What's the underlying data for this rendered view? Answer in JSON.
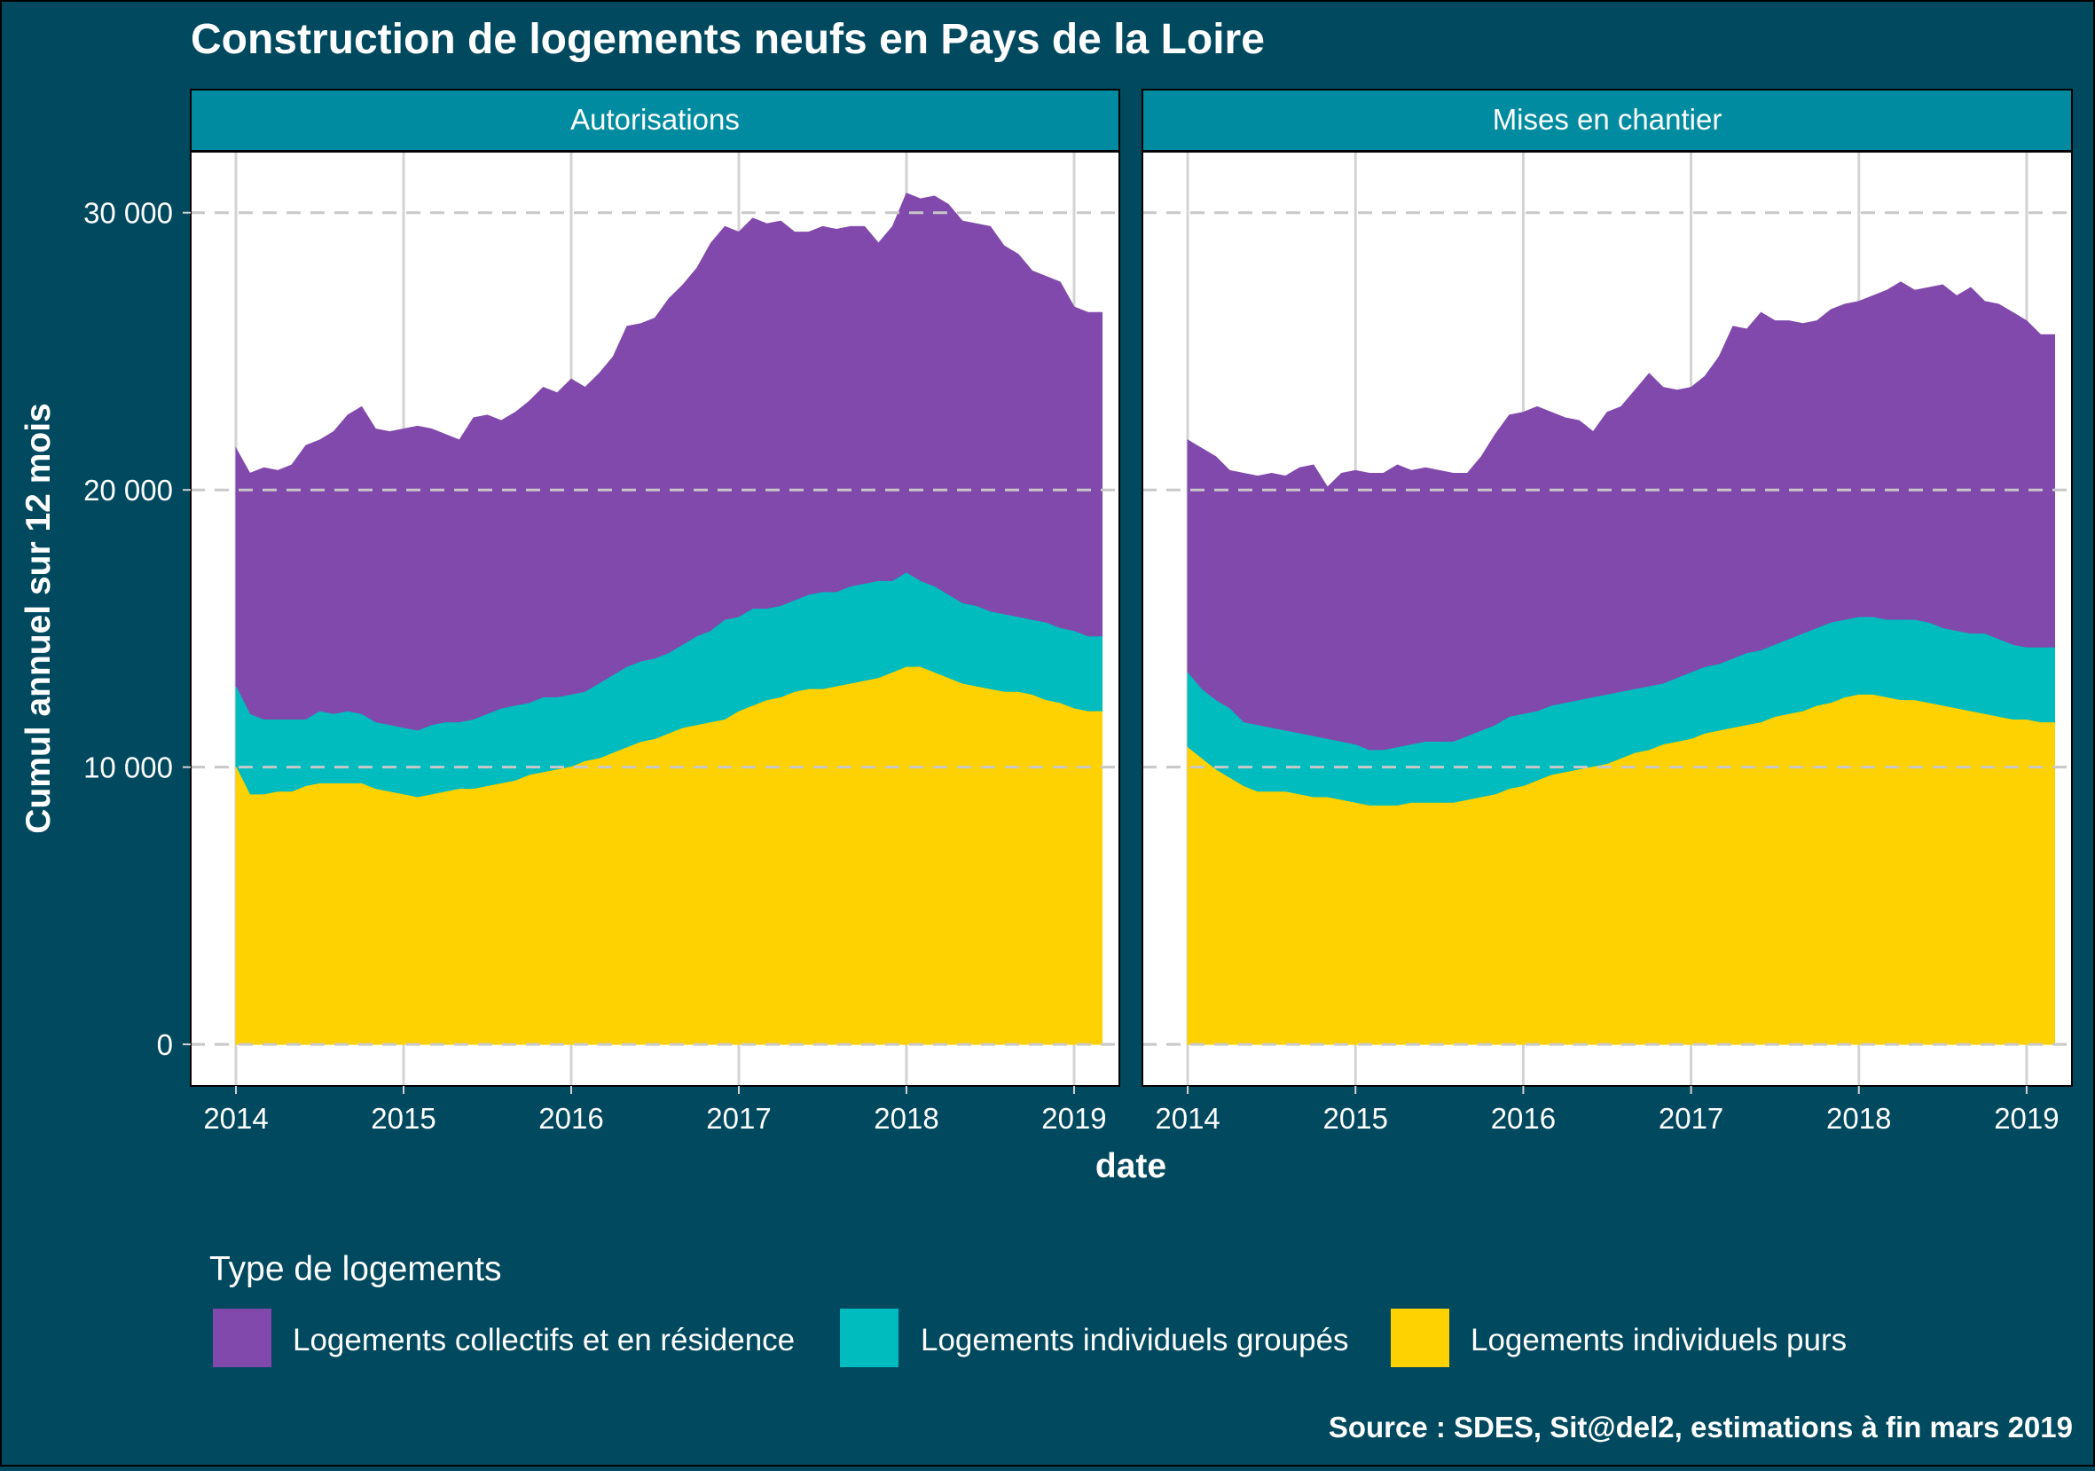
{
  "chart_data": {
    "type": "area",
    "title": "Construction de logements neufs en Pays de la Loire",
    "xlabel": "date",
    "ylabel": "Cumul annuel sur 12 mois",
    "caption": "Source : SDES, Sit@del2, estimations à fin mars 2019",
    "legend_title": "Type de logements",
    "legend_position": "bottom",
    "stacked": true,
    "grid": true,
    "ylim": [
      -1500,
      32200
    ],
    "xlim": [
      2013.73,
      2019.27
    ],
    "y_ticks": [
      0,
      10000,
      20000,
      30000
    ],
    "y_tick_labels": [
      "0",
      "10 000",
      "20 000",
      "30 000"
    ],
    "x_ticks": [
      2014,
      2015,
      2016,
      2017,
      2018,
      2019
    ],
    "x_tick_labels": [
      "2014",
      "2015",
      "2016",
      "2017",
      "2018",
      "2019"
    ],
    "series": [
      {
        "name": "Logements collectifs et en résidence",
        "color": "#8149ab"
      },
      {
        "name": "Logements individuels groupés",
        "color": "#00bcbf"
      },
      {
        "name": "Logements individuels purs",
        "color": "#fed100"
      }
    ],
    "panels": [
      {
        "name": "Autorisations",
        "x": [
          2014.0,
          2014.083,
          2014.167,
          2014.25,
          2014.333,
          2014.417,
          2014.5,
          2014.583,
          2014.667,
          2014.75,
          2014.833,
          2014.917,
          2015.0,
          2015.083,
          2015.167,
          2015.25,
          2015.333,
          2015.417,
          2015.5,
          2015.583,
          2015.667,
          2015.75,
          2015.833,
          2015.917,
          2016.0,
          2016.083,
          2016.167,
          2016.25,
          2016.333,
          2016.417,
          2016.5,
          2016.583,
          2016.667,
          2016.75,
          2016.833,
          2016.917,
          2017.0,
          2017.083,
          2017.167,
          2017.25,
          2017.333,
          2017.417,
          2017.5,
          2017.583,
          2017.667,
          2017.75,
          2017.833,
          2017.917,
          2018.0,
          2018.083,
          2018.167,
          2018.25,
          2018.333,
          2018.417,
          2018.5,
          2018.583,
          2018.667,
          2018.75,
          2018.833,
          2018.917,
          2019.0,
          2019.083,
          2019.167
        ],
        "total": [
          21500,
          20600,
          20800,
          20700,
          20900,
          21600,
          21800,
          22100,
          22700,
          23000,
          22200,
          22100,
          22200,
          22300,
          22200,
          22000,
          21800,
          22600,
          22700,
          22500,
          22800,
          23200,
          23700,
          23500,
          24000,
          23700,
          24200,
          24800,
          25900,
          26000,
          26200,
          26900,
          27400,
          28000,
          28900,
          29500,
          29300,
          29800,
          29600,
          29700,
          29300,
          29300,
          29500,
          29400,
          29500,
          29500,
          28900,
          29500,
          30700,
          30500,
          30600,
          30300,
          29700,
          29600,
          29500,
          28800,
          28500,
          27900,
          27700,
          27500,
          26600,
          26400,
          26400
        ],
        "groupes_plus_purs": [
          12900,
          11900,
          11700,
          11700,
          11700,
          11700,
          12000,
          11900,
          12000,
          11900,
          11600,
          11500,
          11400,
          11300,
          11500,
          11600,
          11600,
          11700,
          11900,
          12100,
          12200,
          12300,
          12500,
          12500,
          12600,
          12700,
          13000,
          13300,
          13600,
          13800,
          13900,
          14100,
          14400,
          14700,
          14900,
          15300,
          15400,
          15700,
          15700,
          15800,
          16000,
          16200,
          16300,
          16300,
          16500,
          16600,
          16700,
          16700,
          17000,
          16700,
          16500,
          16200,
          15900,
          15800,
          15600,
          15500,
          15400,
          15300,
          15200,
          15000,
          14900,
          14700,
          14700
        ],
        "purs": [
          10000,
          9000,
          9000,
          9100,
          9100,
          9300,
          9400,
          9400,
          9400,
          9400,
          9200,
          9100,
          9000,
          8900,
          9000,
          9100,
          9200,
          9200,
          9300,
          9400,
          9500,
          9700,
          9800,
          9900,
          10000,
          10200,
          10300,
          10500,
          10700,
          10900,
          11000,
          11200,
          11400,
          11500,
          11600,
          11700,
          12000,
          12200,
          12400,
          12500,
          12700,
          12800,
          12800,
          12900,
          13000,
          13100,
          13200,
          13400,
          13600,
          13600,
          13400,
          13200,
          13000,
          12900,
          12800,
          12700,
          12700,
          12600,
          12400,
          12300,
          12100,
          12000,
          12000
        ]
      },
      {
        "name": "Mises en chantier",
        "x": [
          2014.0,
          2014.083,
          2014.167,
          2014.25,
          2014.333,
          2014.417,
          2014.5,
          2014.583,
          2014.667,
          2014.75,
          2014.833,
          2014.917,
          2015.0,
          2015.083,
          2015.167,
          2015.25,
          2015.333,
          2015.417,
          2015.5,
          2015.583,
          2015.667,
          2015.75,
          2015.833,
          2015.917,
          2016.0,
          2016.083,
          2016.167,
          2016.25,
          2016.333,
          2016.417,
          2016.5,
          2016.583,
          2016.667,
          2016.75,
          2016.833,
          2016.917,
          2017.0,
          2017.083,
          2017.167,
          2017.25,
          2017.333,
          2017.417,
          2017.5,
          2017.583,
          2017.667,
          2017.75,
          2017.833,
          2017.917,
          2018.0,
          2018.083,
          2018.167,
          2018.25,
          2018.333,
          2018.417,
          2018.5,
          2018.583,
          2018.667,
          2018.75,
          2018.833,
          2018.917,
          2019.0,
          2019.083,
          2019.167
        ],
        "total": [
          21800,
          21500,
          21200,
          20700,
          20600,
          20500,
          20600,
          20500,
          20800,
          20900,
          20100,
          20600,
          20700,
          20600,
          20600,
          20900,
          20700,
          20800,
          20700,
          20600,
          20600,
          21200,
          22000,
          22700,
          22800,
          23000,
          22800,
          22600,
          22500,
          22100,
          22800,
          23000,
          23600,
          24200,
          23700,
          23600,
          23700,
          24100,
          24800,
          25900,
          25800,
          26400,
          26100,
          26100,
          26000,
          26100,
          26500,
          26700,
          26800,
          27000,
          27200,
          27500,
          27200,
          27300,
          27400,
          27000,
          27300,
          26800,
          26700,
          26400,
          26100,
          25600,
          25600
        ],
        "groupes_plus_purs": [
          13400,
          12800,
          12400,
          12100,
          11600,
          11500,
          11400,
          11300,
          11200,
          11100,
          11000,
          10900,
          10800,
          10600,
          10600,
          10700,
          10800,
          10900,
          10900,
          10900,
          11100,
          11300,
          11500,
          11800,
          11900,
          12000,
          12200,
          12300,
          12400,
          12500,
          12600,
          12700,
          12800,
          12900,
          13000,
          13200,
          13400,
          13600,
          13700,
          13900,
          14100,
          14200,
          14400,
          14600,
          14800,
          15000,
          15200,
          15300,
          15400,
          15400,
          15300,
          15300,
          15300,
          15200,
          15000,
          14900,
          14800,
          14800,
          14600,
          14400,
          14300,
          14300,
          14300
        ],
        "purs": [
          10700,
          10300,
          9900,
          9600,
          9300,
          9100,
          9100,
          9100,
          9000,
          8900,
          8900,
          8800,
          8700,
          8600,
          8600,
          8600,
          8700,
          8700,
          8700,
          8700,
          8800,
          8900,
          9000,
          9200,
          9300,
          9500,
          9700,
          9800,
          9900,
          10000,
          10100,
          10300,
          10500,
          10600,
          10800,
          10900,
          11000,
          11200,
          11300,
          11400,
          11500,
          11600,
          11800,
          11900,
          12000,
          12200,
          12300,
          12500,
          12600,
          12600,
          12500,
          12400,
          12400,
          12300,
          12200,
          12100,
          12000,
          11900,
          11800,
          11700,
          11700,
          11600,
          11600
        ]
      }
    ]
  }
}
